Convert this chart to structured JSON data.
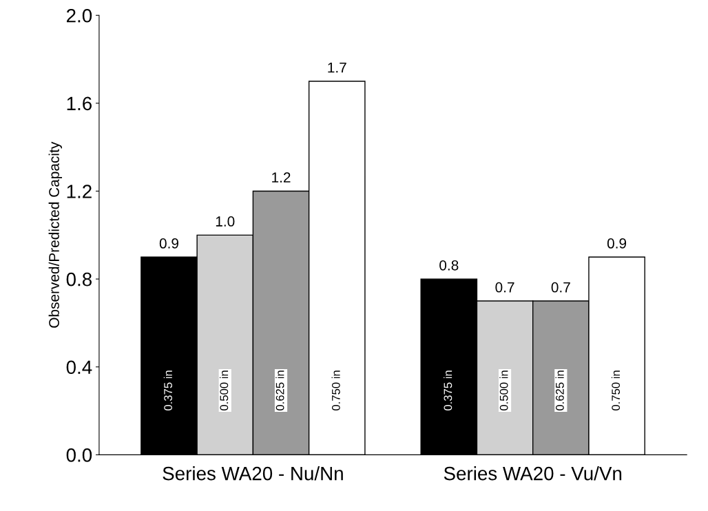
{
  "chart_data": {
    "type": "bar",
    "ylabel": "Observed/Predicted Capacity",
    "categories": [
      "Series WA20 - Nu/Nn",
      "Series WA20 - Vu/Vn"
    ],
    "series": [
      {
        "name": "0.375 in",
        "color": "#000000",
        "values": [
          0.9,
          0.8
        ],
        "value_labels": [
          "0.9",
          "0.8"
        ]
      },
      {
        "name": "0.500 in",
        "color": "#d0d0d0",
        "values": [
          1.0,
          0.7
        ],
        "value_labels": [
          "1.0",
          "0.7"
        ]
      },
      {
        "name": "0.625 in",
        "color": "#9a9a9a",
        "values": [
          1.2,
          0.7
        ],
        "value_labels": [
          "1.2",
          "0.7"
        ]
      },
      {
        "name": "0.750 in",
        "color": "#ffffff",
        "values": [
          1.7,
          0.9
        ],
        "value_labels": [
          "1.7",
          "0.9"
        ]
      }
    ],
    "ylim": [
      0.0,
      2.0
    ],
    "yticks": [
      {
        "value": 0,
        "label": "0.0"
      },
      0.4,
      0.8,
      1.2,
      1.6,
      {
        "value": 2,
        "label": "2.0"
      }
    ],
    "grid": false,
    "legend": false
  }
}
